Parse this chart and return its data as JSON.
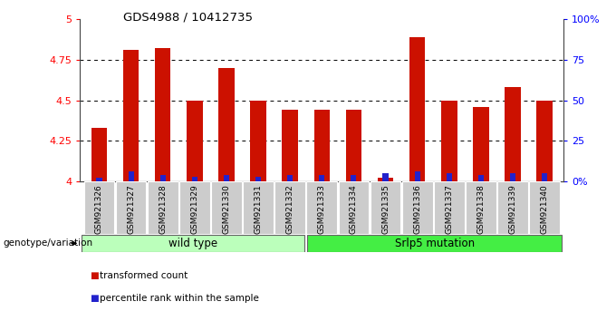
{
  "title": "GDS4988 / 10412735",
  "samples": [
    "GSM921326",
    "GSM921327",
    "GSM921328",
    "GSM921329",
    "GSM921330",
    "GSM921331",
    "GSM921332",
    "GSM921333",
    "GSM921334",
    "GSM921335",
    "GSM921336",
    "GSM921337",
    "GSM921338",
    "GSM921339",
    "GSM921340"
  ],
  "red_values": [
    4.33,
    4.81,
    4.82,
    4.5,
    4.7,
    4.5,
    4.44,
    4.44,
    4.44,
    4.02,
    4.89,
    4.5,
    4.46,
    4.58,
    4.5
  ],
  "blue_pct": [
    2,
    6,
    4,
    3,
    4,
    3,
    4,
    4,
    4,
    5,
    6,
    5,
    4,
    5,
    5
  ],
  "ylim_left": [
    4.0,
    5.0
  ],
  "ylim_right": [
    0,
    100
  ],
  "yticks_left": [
    4.0,
    4.25,
    4.5,
    4.75,
    5.0
  ],
  "yticks_right": [
    0,
    25,
    50,
    75,
    100
  ],
  "ytick_labels_left": [
    "4",
    "4.25",
    "4.5",
    "4.75",
    "5"
  ],
  "ytick_labels_right": [
    "0%",
    "25",
    "50",
    "75",
    "100%"
  ],
  "bar_color_red": "#cc1100",
  "bar_color_blue": "#2222cc",
  "hgrid_ticks": [
    4.25,
    4.5,
    4.75
  ],
  "wt_count": 7,
  "mut_count": 8,
  "groups": [
    {
      "label": "wild type",
      "color": "#bbffbb"
    },
    {
      "label": "Srlp5 mutation",
      "color": "#44ee44"
    }
  ],
  "genotype_label": "genotype/variation",
  "legend_red": "transformed count",
  "legend_blue": "percentile rank within the sample",
  "bar_bottom": 4.0,
  "bar_width": 0.5
}
